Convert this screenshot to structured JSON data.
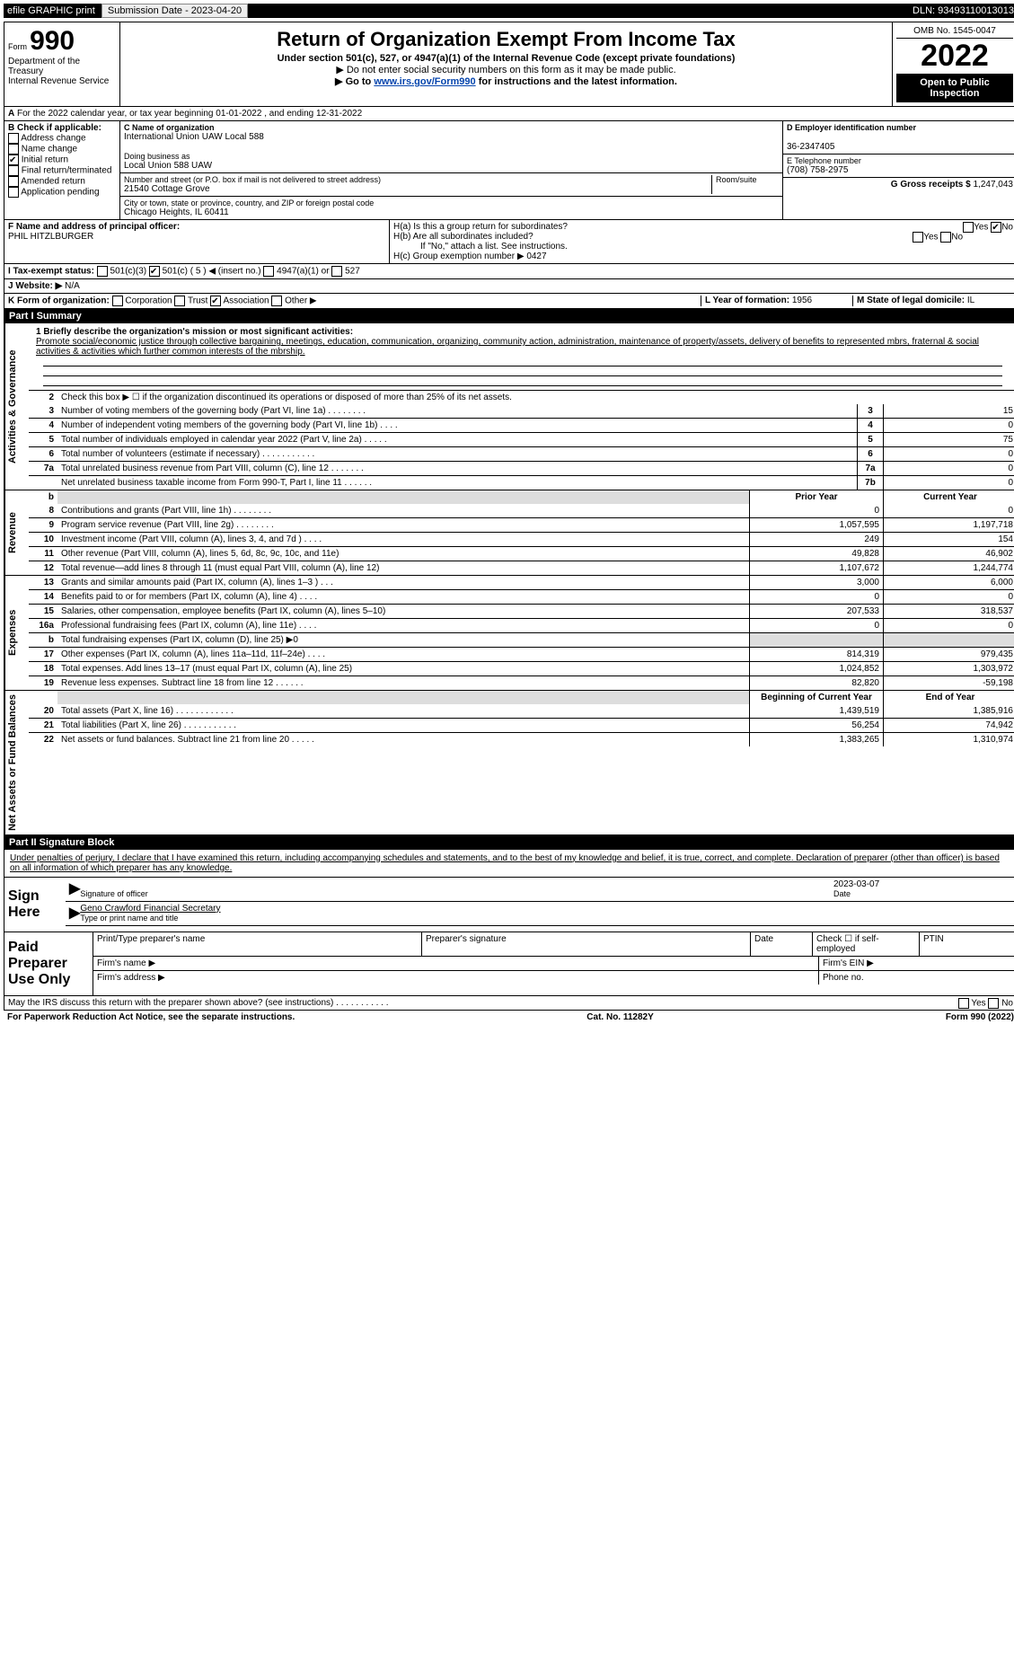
{
  "topbar": {
    "efile": "efile GRAPHIC print",
    "submission": "Submission Date - 2023-04-20",
    "dln": "DLN: 93493110013013"
  },
  "header": {
    "form_prefix": "Form",
    "form_number": "990",
    "title": "Return of Organization Exempt From Income Tax",
    "subtitle": "Under section 501(c), 527, or 4947(a)(1) of the Internal Revenue Code (except private foundations)",
    "note1": "▶ Do not enter social security numbers on this form as it may be made public.",
    "note2_pre": "▶ Go to ",
    "note2_link": "www.irs.gov/Form990",
    "note2_post": " for instructions and the latest information.",
    "dept": "Department of the Treasury\nInternal Revenue Service",
    "omb": "OMB No. 1545-0047",
    "year": "2022",
    "open": "Open to Public Inspection"
  },
  "sectionA": "For the 2022 calendar year, or tax year beginning 01-01-2022    , and ending 12-31-2022",
  "B": {
    "hdr": "B Check if applicable:",
    "items": [
      "Address change",
      "Name change",
      "Initial return",
      "Final return/terminated",
      "Amended return",
      "Application pending"
    ],
    "checked_index": 2
  },
  "C": {
    "name_lbl": "C Name of organization",
    "name": "International Union UAW Local 588",
    "dba_lbl": "Doing business as",
    "dba": "Local Union 588 UAW",
    "addr_lbl": "Number and street (or P.O. box if mail is not delivered to street address)",
    "room_lbl": "Room/suite",
    "addr": "21540 Cottage Grove",
    "city_lbl": "City or town, state or province, country, and ZIP or foreign postal code",
    "city": "Chicago Heights, IL  60411"
  },
  "D": {
    "ein_lbl": "D Employer identification number",
    "ein": "36-2347405",
    "E_lbl": "E Telephone number",
    "E_val": "(708) 758-2975",
    "G_lbl": "G Gross receipts $",
    "G_val": "1,247,043"
  },
  "F": {
    "lbl": "F  Name and address of principal officer:",
    "name": "PHIL HITZLBURGER"
  },
  "H": {
    "a": "H(a)  Is this a group return for subordinates?",
    "a_yes": "Yes",
    "a_no": "No",
    "b": "H(b)  Are all subordinates included?",
    "b_note": "If \"No,\" attach a list. See instructions.",
    "c_lbl": "H(c)  Group exemption number ▶",
    "c_val": "0427"
  },
  "I": {
    "lbl": "I    Tax-exempt status:",
    "opts": [
      "501(c)(3)",
      "501(c) ( 5 ) ◀ (insert no.)",
      "4947(a)(1) or",
      "527"
    ],
    "checked_index": 1
  },
  "J": {
    "lbl": "J    Website: ▶",
    "val": "N/A"
  },
  "K": {
    "lbl": "K Form of organization:",
    "opts": [
      "Corporation",
      "Trust",
      "Association",
      "Other ▶"
    ],
    "checked_index": 2,
    "L_lbl": "L Year of formation:",
    "L_val": "1956",
    "M_lbl": "M State of legal domicile:",
    "M_val": "IL"
  },
  "part1": {
    "hdr": "Part I      Summary",
    "q1_lbl": "1  Briefly describe the organization's mission or most significant activities:",
    "q1_text": "Promote social/economic justice through collective bargaining, meetings, education, communication, organizing, community action, administration, maintenance of property/assets, delivery of benefits to represented mbrs, fraternal & social activities & activities which further common interests of the mbrship.",
    "side_gov": "Activities & Governance",
    "side_rev": "Revenue",
    "side_exp": "Expenses",
    "side_net": "Net Assets or Fund Balances",
    "q2": "Check this box ▶ ☐  if the organization discontinued its operations or disposed of more than 25% of its net assets.",
    "lines_gov": [
      {
        "n": "3",
        "d": "Number of voting members of the governing body (Part VI, line 1a)  .    .    .    .    .    .    .    .",
        "box": "3",
        "v": "15"
      },
      {
        "n": "4",
        "d": "Number of independent voting members of the governing body (Part VI, line 1b)   .    .    .    .",
        "box": "4",
        "v": "0"
      },
      {
        "n": "5",
        "d": "Total number of individuals employed in calendar year 2022 (Part V, line 2a)  .    .    .    .    .",
        "box": "5",
        "v": "75"
      },
      {
        "n": "6",
        "d": "Total number of volunteers (estimate if necessary)    .    .    .    .    .    .    .    .    .    .    .",
        "box": "6",
        "v": "0"
      },
      {
        "n": "7a",
        "d": "Total unrelated business revenue from Part VIII, column (C), line 12   .    .    .    .    .    .    .",
        "box": "7a",
        "v": "0"
      },
      {
        "n": "",
        "d": "Net unrelated business taxable income from Form 990-T, Part I, line 11   .    .    .    .    .    .",
        "box": "7b",
        "v": "0"
      }
    ],
    "col_b": "b",
    "hdr_prior": "Prior Year",
    "hdr_curr": "Current Year",
    "lines_rev": [
      {
        "n": "8",
        "d": "Contributions and grants (Part VIII, line 1h)   .    .    .    .    .    .    .    .",
        "p": "0",
        "c": "0"
      },
      {
        "n": "9",
        "d": "Program service revenue (Part VIII, line 2g)   .    .    .    .    .    .    .    .",
        "p": "1,057,595",
        "c": "1,197,718"
      },
      {
        "n": "10",
        "d": "Investment income (Part VIII, column (A), lines 3, 4, and 7d )   .    .    .    .",
        "p": "249",
        "c": "154"
      },
      {
        "n": "11",
        "d": "Other revenue (Part VIII, column (A), lines 5, 6d, 8c, 9c, 10c, and 11e)",
        "p": "49,828",
        "c": "46,902"
      },
      {
        "n": "12",
        "d": "Total revenue—add lines 8 through 11 (must equal Part VIII, column (A), line 12)",
        "p": "1,107,672",
        "c": "1,244,774"
      }
    ],
    "lines_exp": [
      {
        "n": "13",
        "d": "Grants and similar amounts paid (Part IX, column (A), lines 1–3 )  .    .    .",
        "p": "3,000",
        "c": "6,000"
      },
      {
        "n": "14",
        "d": "Benefits paid to or for members (Part IX, column (A), line 4)   .    .    .    .",
        "p": "0",
        "c": "0"
      },
      {
        "n": "15",
        "d": "Salaries, other compensation, employee benefits (Part IX, column (A), lines 5–10)",
        "p": "207,533",
        "c": "318,537"
      },
      {
        "n": "16a",
        "d": "Professional fundraising fees (Part IX, column (A), line 11e)   .    .    .    .",
        "p": "0",
        "c": "0"
      },
      {
        "n": "b",
        "d": "Total fundraising expenses (Part IX, column (D), line 25) ▶0",
        "p": "",
        "c": "",
        "shade": true
      },
      {
        "n": "17",
        "d": "Other expenses (Part IX, column (A), lines 11a–11d, 11f–24e)  .    .    .    .",
        "p": "814,319",
        "c": "979,435"
      },
      {
        "n": "18",
        "d": "Total expenses. Add lines 13–17 (must equal Part IX, column (A), line 25)",
        "p": "1,024,852",
        "c": "1,303,972"
      },
      {
        "n": "19",
        "d": "Revenue less expenses. Subtract line 18 from line 12  .    .    .    .    .    .",
        "p": "82,820",
        "c": "-59,198"
      }
    ],
    "hdr_beg": "Beginning of Current Year",
    "hdr_end": "End of Year",
    "lines_net": [
      {
        "n": "20",
        "d": "Total assets (Part X, line 16)   .    .    .    .    .    .    .    .    .    .    .    .",
        "p": "1,439,519",
        "c": "1,385,916"
      },
      {
        "n": "21",
        "d": "Total liabilities (Part X, line 26)   .    .    .    .    .    .    .    .    .    .    .",
        "p": "56,254",
        "c": "74,942"
      },
      {
        "n": "22",
        "d": "Net assets or fund balances. Subtract line 21 from line 20  .    .    .    .    .",
        "p": "1,383,265",
        "c": "1,310,974"
      }
    ]
  },
  "part2": {
    "hdr": "Part II     Signature Block",
    "penalty": "Under penalties of perjury, I declare that I have examined this return, including accompanying schedules and statements, and to the best of my knowledge and belief, it is true, correct, and complete. Declaration of preparer (other than officer) is based on all information of which preparer has any knowledge.",
    "sign_here": "Sign Here",
    "sig_officer": "Signature of officer",
    "date_lbl": "Date",
    "date_val": "2023-03-07",
    "typed_name": "Geno Crawford  Financial Secretary",
    "typed_lbl": "Type or print name and title",
    "paid": "Paid Preparer Use Only",
    "p_name": "Print/Type preparer's name",
    "p_sig": "Preparer's signature",
    "p_date": "Date",
    "p_check": "Check ☐ if self-employed",
    "p_ptin": "PTIN",
    "firm_name": "Firm's name    ▶",
    "firm_ein": "Firm's EIN ▶",
    "firm_addr": "Firm's address ▶",
    "phone": "Phone no.",
    "may_irs": "May the IRS discuss this return with the preparer shown above? (see instructions)   .    .    .    .    .    .    .    .    .    .    .",
    "yes": "Yes",
    "no": "No"
  },
  "footer": {
    "pra": "For Paperwork Reduction Act Notice, see the separate instructions.",
    "cat": "Cat. No. 11282Y",
    "form": "Form 990 (2022)"
  }
}
